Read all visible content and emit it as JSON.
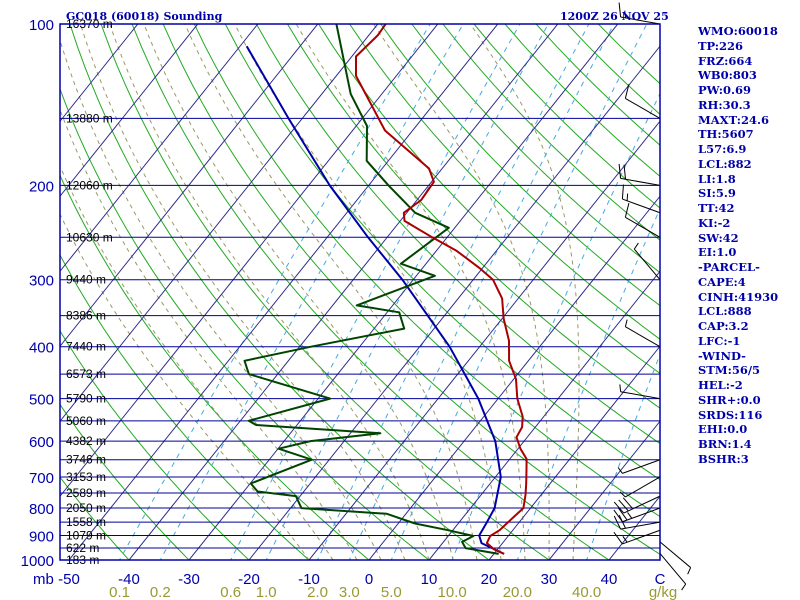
{
  "header": {
    "station_title": "GC018 (60018) Sounding",
    "valid_time": "1200Z 26 NOV 25"
  },
  "indices": [
    "WMO:60018",
    "TP:226",
    "FRZ:664",
    "WB0:803",
    "PW:0.69",
    "RH:30.3",
    "MAXT:24.6",
    "TH:5607",
    "L57:6.9",
    "LCL:882",
    "LI:1.8",
    "SI:5.9",
    "TT:42",
    "KI:-2",
    "SW:42",
    "EI:1.0",
    "-PARCEL-",
    "CAPE:4",
    "CINH:41930",
    "LCL:888",
    "CAP:3.2",
    "LFC:-1",
    "-WIND-",
    "STM:56/5",
    "HEL:-2",
    "SHR+:0.0",
    "SRDS:116",
    "EHI:0.0",
    "BRN:1.4",
    "BSHR:3"
  ],
  "colors": {
    "frame": "#0000aa",
    "isobar": "#000099",
    "isotherm": "#2a2a8c",
    "dry_adiabat": "#22aa22",
    "moist_adiabat": "#999966",
    "mixing_ratio": "#44aadd",
    "temperature": "#aa0000",
    "dewpoint": "#004400",
    "parcel": "#0000aa",
    "mixing_label": "#999933"
  },
  "chart_data": {
    "type": "skew-t log-p sounding",
    "title": "GC018 (60018) Sounding",
    "pressure_axis_unit": "mb",
    "pressure_range_mb": [
      1000,
      100
    ],
    "pressure_ticks": [
      100,
      200,
      300,
      400,
      500,
      600,
      700,
      800,
      900,
      1000
    ],
    "temperature_axis_unit": "C",
    "temperature_ticks": [
      -50,
      -40,
      -30,
      -20,
      -10,
      0,
      10,
      20,
      30,
      40
    ],
    "mixing_ratio_unit": "g/kg",
    "mixing_ratio_ticks": [
      "0.1",
      "0.2",
      "0.6",
      "1.0",
      "2.0",
      "3.0",
      "5.0",
      "10.0",
      "20.0",
      "40.0"
    ],
    "height_labels": [
      {
        "p": 100,
        "label": "16370 m"
      },
      {
        "p": 150,
        "label": "13880 m"
      },
      {
        "p": 200,
        "label": "12060 m"
      },
      {
        "p": 250,
        "label": "10630 m"
      },
      {
        "p": 300,
        "label": "9440 m"
      },
      {
        "p": 350,
        "label": "8386 m"
      },
      {
        "p": 400,
        "label": "7440 m"
      },
      {
        "p": 450,
        "label": "6573 m"
      },
      {
        "p": 500,
        "label": "5790 m"
      },
      {
        "p": 550,
        "label": "5060 m"
      },
      {
        "p": 600,
        "label": "4382 m"
      },
      {
        "p": 650,
        "label": "3746 m"
      },
      {
        "p": 700,
        "label": "3153 m"
      },
      {
        "p": 750,
        "label": "2589 m"
      },
      {
        "p": 800,
        "label": "2050 m"
      },
      {
        "p": 850,
        "label": "1558 m"
      },
      {
        "p": 900,
        "label": "1079 m"
      },
      {
        "p": 950,
        "label": "622 m"
      },
      {
        "p": 1000,
        "label": "183 m"
      }
    ],
    "temperature_profile": [
      [
        974,
        21.7
      ],
      [
        955,
        19.4
      ],
      [
        930,
        17.4
      ],
      [
        902,
        17.0
      ],
      [
        880,
        17.8
      ],
      [
        862,
        18.0
      ],
      [
        830,
        18.4
      ],
      [
        800,
        18.8
      ],
      [
        756,
        17.4
      ],
      [
        720,
        16.0
      ],
      [
        676,
        14.1
      ],
      [
        648,
        12.8
      ],
      [
        620,
        10.4
      ],
      [
        590,
        8.2
      ],
      [
        565,
        7.8
      ],
      [
        540,
        6.5
      ],
      [
        500,
        3.2
      ],
      [
        460,
        0.4
      ],
      [
        425,
        -3.2
      ],
      [
        390,
        -5.9
      ],
      [
        355,
        -9.7
      ],
      [
        325,
        -12.7
      ],
      [
        300,
        -16.7
      ],
      [
        285,
        -20.6
      ],
      [
        265,
        -26.6
      ],
      [
        250,
        -32.5
      ],
      [
        233,
        -39.3
      ],
      [
        225,
        -40.5
      ],
      [
        213,
        -39.3
      ],
      [
        197,
        -39.6
      ],
      [
        186,
        -42.2
      ],
      [
        158,
        -54.6
      ],
      [
        125,
        -66.7
      ],
      [
        115,
        -69.3
      ],
      [
        105,
        -68.5
      ],
      [
        100,
        -68.7
      ]
    ],
    "dewpoint_profile": [
      [
        974,
        20.8
      ],
      [
        950,
        14.5
      ],
      [
        925,
        13.1
      ],
      [
        902,
        14.2
      ],
      [
        880,
        9.2
      ],
      [
        855,
        2.8
      ],
      [
        820,
        -3.2
      ],
      [
        800,
        -18.2
      ],
      [
        760,
        -20.7
      ],
      [
        745,
        -27.7
      ],
      [
        720,
        -29.9
      ],
      [
        650,
        -22.9
      ],
      [
        620,
        -29.9
      ],
      [
        600,
        -25.6
      ],
      [
        580,
        -15.0
      ],
      [
        560,
        -36.8
      ],
      [
        550,
        -38.6
      ],
      [
        500,
        -28.0
      ],
      [
        450,
        -44.8
      ],
      [
        425,
        -47.3
      ],
      [
        400,
        -38.1
      ],
      [
        370,
        -25.0
      ],
      [
        345,
        -28.0
      ],
      [
        335,
        -36.0
      ],
      [
        295,
        -26.9
      ],
      [
        280,
        -34.2
      ],
      [
        240,
        -31.0
      ],
      [
        225,
        -38.6
      ],
      [
        200,
        -46.7
      ],
      [
        180,
        -53.6
      ],
      [
        155,
        -58.2
      ],
      [
        135,
        -65.2
      ],
      [
        100,
        -76.9
      ]
    ],
    "parcel_profile": [
      [
        974,
        21.7
      ],
      [
        930,
        16.5
      ],
      [
        900,
        15.1
      ],
      [
        850,
        14.6
      ],
      [
        800,
        14.0
      ],
      [
        700,
        10.9
      ],
      [
        600,
        5.2
      ],
      [
        500,
        -3.3
      ],
      [
        400,
        -15.0
      ],
      [
        300,
        -31.8
      ],
      [
        250,
        -43.2
      ],
      [
        200,
        -56.5
      ],
      [
        150,
        -72.3
      ],
      [
        110,
        -88.9
      ]
    ],
    "wind_barbs": [
      {
        "p": 972,
        "dir": 140,
        "kt": 5
      },
      {
        "p": 925,
        "dir": 130,
        "kt": 5
      },
      {
        "p": 880,
        "dir": 250,
        "kt": 15
      },
      {
        "p": 850,
        "dir": 260,
        "kt": 20
      },
      {
        "p": 800,
        "dir": 250,
        "kt": 25
      },
      {
        "p": 760,
        "dir": 245,
        "kt": 30
      },
      {
        "p": 700,
        "dir": 240,
        "kt": 5
      },
      {
        "p": 650,
        "dir": 250,
        "kt": 5
      },
      {
        "p": 500,
        "dir": 280,
        "kt": 5
      },
      {
        "p": 400,
        "dir": 300,
        "kt": 5
      },
      {
        "p": 300,
        "dir": 320,
        "kt": 5
      },
      {
        "p": 250,
        "dir": 300,
        "kt": 10
      },
      {
        "p": 225,
        "dir": 290,
        "kt": 15
      },
      {
        "p": 200,
        "dir": 280,
        "kt": 20
      },
      {
        "p": 150,
        "dir": 300,
        "kt": 10
      },
      {
        "p": 100,
        "dir": 280,
        "kt": 15
      }
    ]
  }
}
